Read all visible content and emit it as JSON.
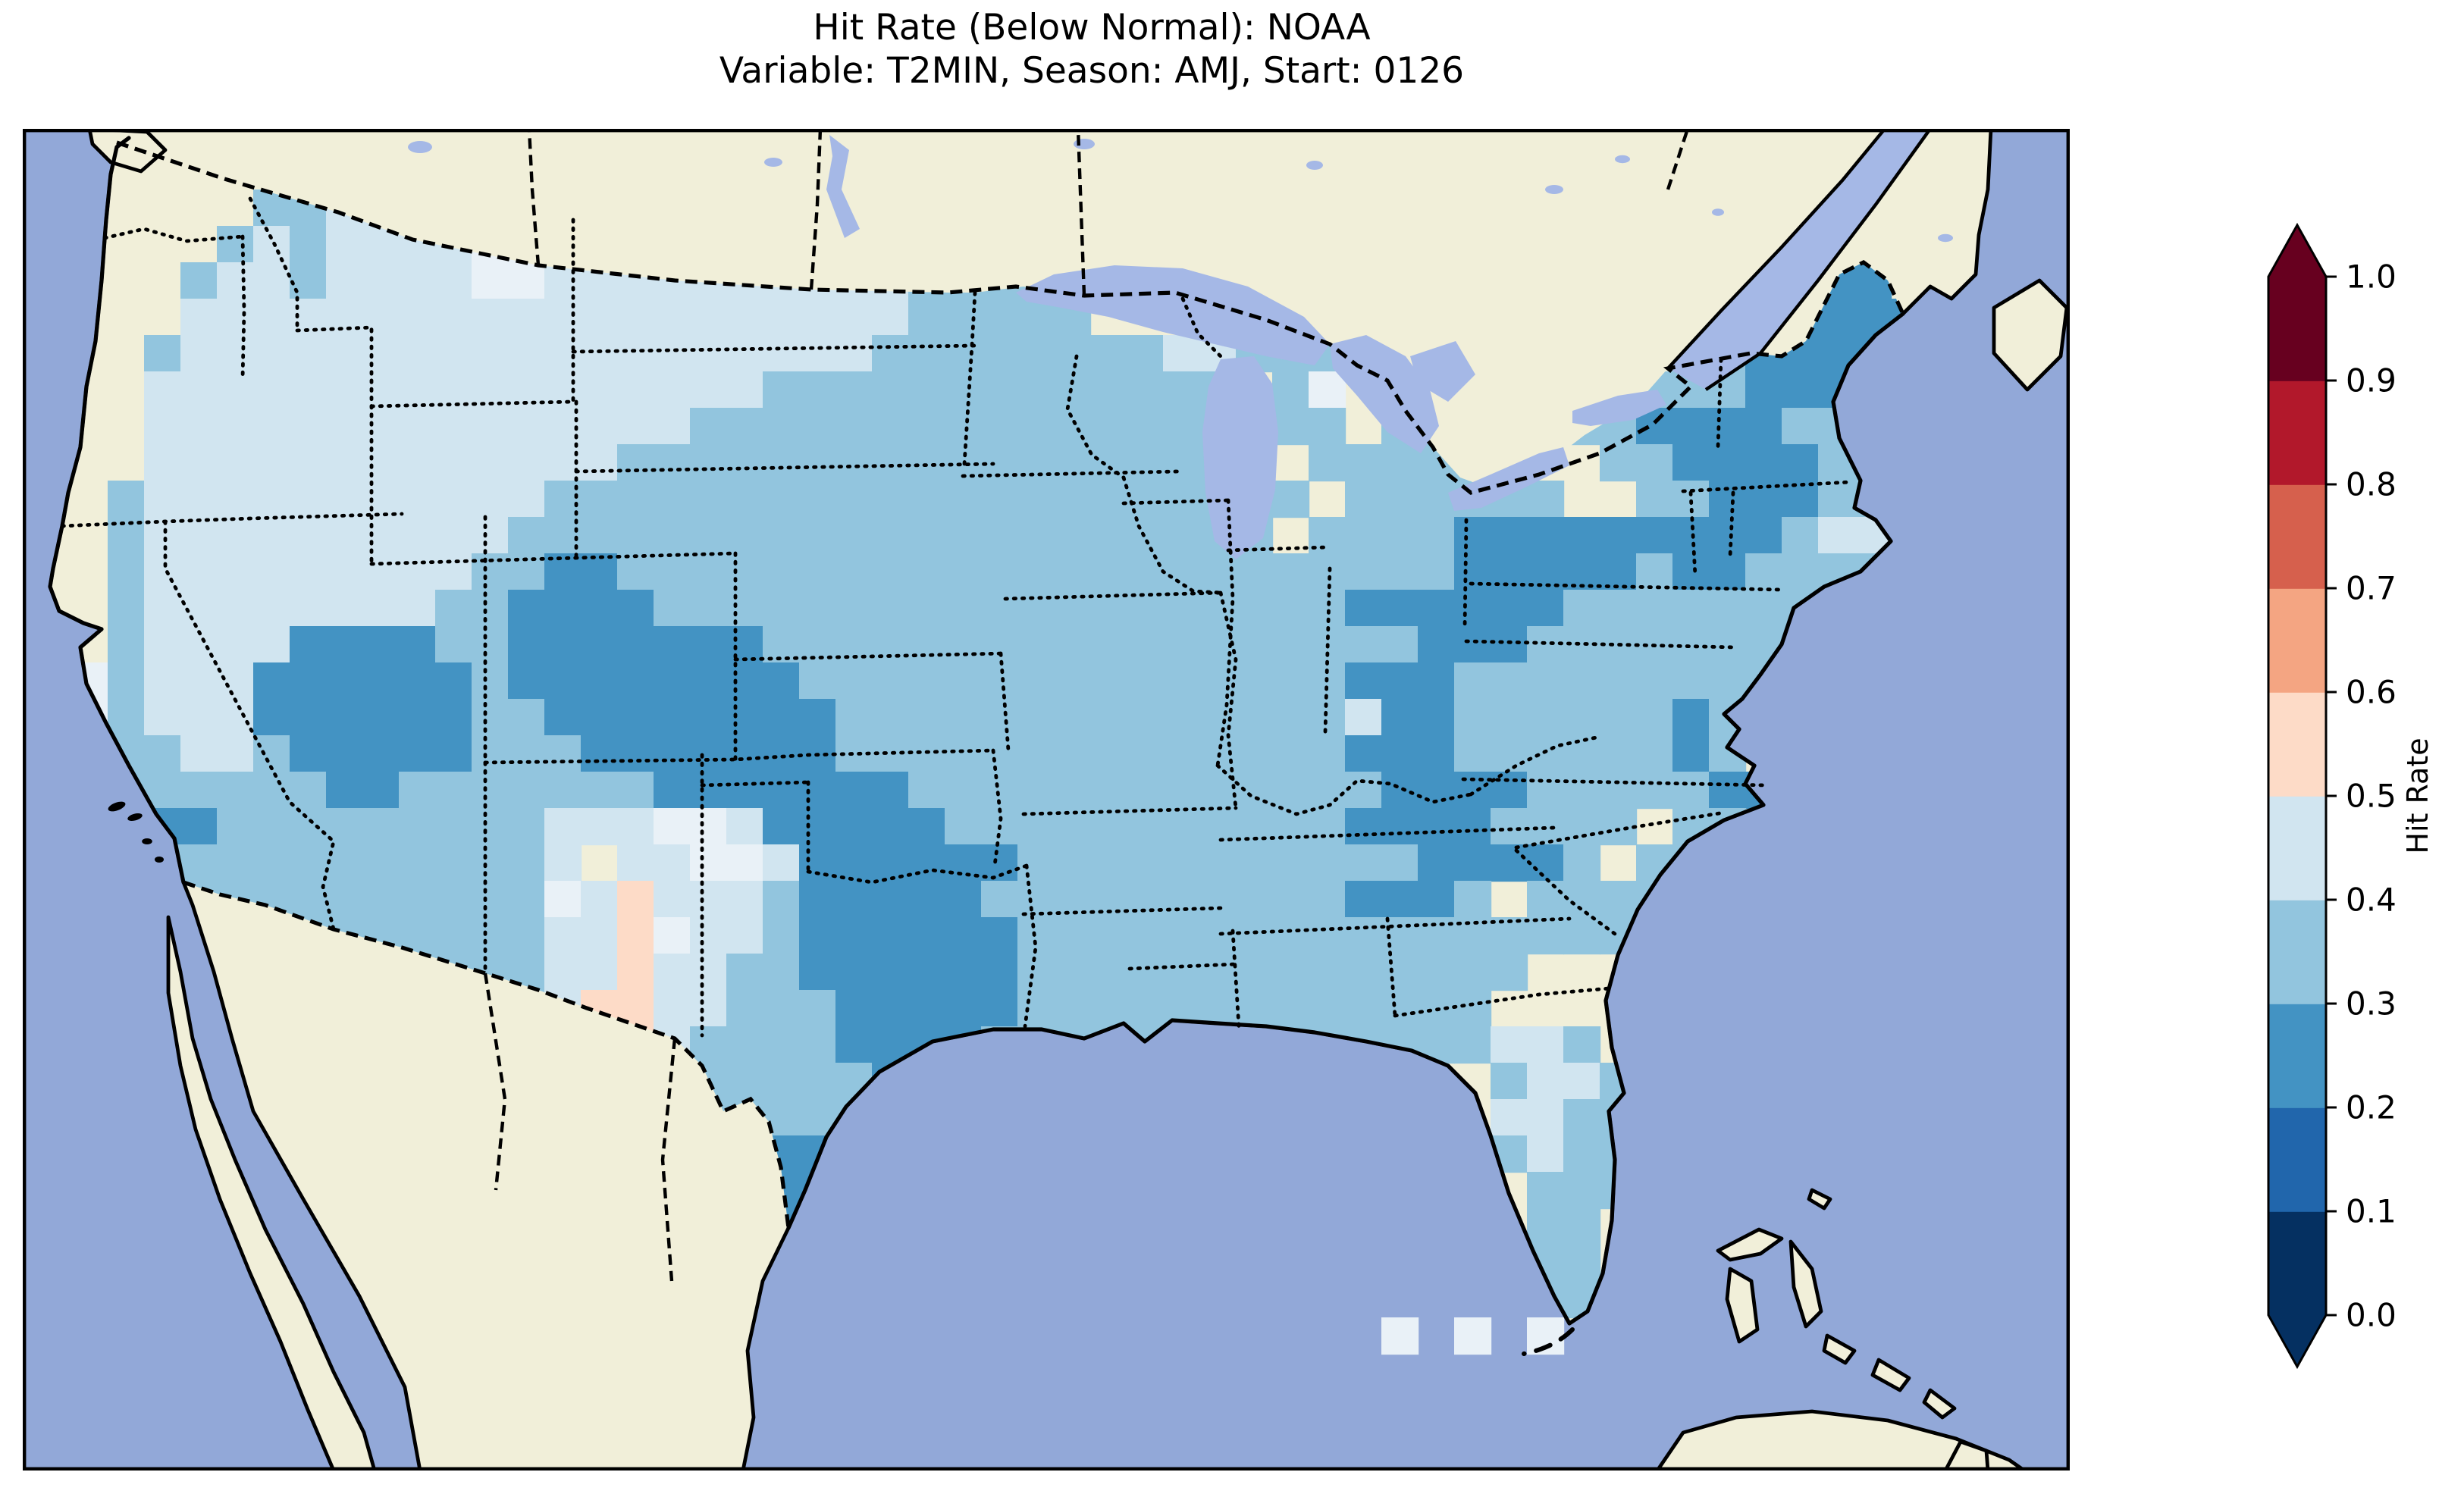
{
  "title": {
    "line1": "Hit Rate (Below Normal): NOAA",
    "line2": "Variable: T2MIN, Season: AMJ, Start: 0126"
  },
  "colorbar": {
    "label": "Hit Rate",
    "orientation": "vertical",
    "extend": "both",
    "ticks": [
      "0.0",
      "0.1",
      "0.2",
      "0.3",
      "0.4",
      "0.5",
      "0.6",
      "0.7",
      "0.8",
      "0.9",
      "1.0"
    ],
    "bin_colors_low_to_high": [
      "#053061",
      "#2166ac",
      "#4393c3",
      "#92c5de",
      "#d1e5f0",
      "#fddbc7",
      "#f4a582",
      "#d6604d",
      "#b2182b",
      "#67001f"
    ],
    "under_arrow_color": "#053061",
    "over_arrow_color": "#67001f"
  },
  "map": {
    "ocean_color": "#92a8d8",
    "lake_color": "#a5b8e6",
    "land_color": "#f1efd9",
    "coastline_color": "#000000",
    "state_border_style": "dotted black",
    "country_border_style": "dashed black"
  },
  "chart_data": {
    "type": "heatmap",
    "title": "Hit Rate (Below Normal): NOAA",
    "subtitle": "Variable: T2MIN, Season: AMJ, Start: 0126",
    "colorbar_label": "Hit Rate",
    "value_range": [
      0.0,
      1.0
    ],
    "bin_edges": [
      0.0,
      0.1,
      0.2,
      0.3,
      0.4,
      0.5,
      0.6,
      0.7,
      0.8,
      0.9,
      1.0
    ],
    "legend_position": "right",
    "region": "contiguous United States (gridded ~1-degree cells)",
    "cell": 24,
    "origin": [
      8,
      40
    ],
    "palette": {
      "2": "#4393c3",
      "3": "#92c5de",
      "4": "#d1e5f0",
      "5": "#fddbc7",
      "w": "#e9f1f7",
      "W": "#e9f1f7"
    },
    "palette_meaning": {
      "2": "hit rate 0.2-0.3",
      "3": "hit rate 0.3-0.4",
      "4": "hit rate 0.4-0.5",
      "5": "hit rate 0.5-0.6",
      "w": "hit rate ~0.5 (near-white cell)",
      "W": "hit rate ~0.5 (near-white cell over water)"
    },
    "grid": [
      "......334444wwwww4444444333.........................",
      ".....3434444wwww4444444433333.......................",
      "....34434444ww44444444443333333.................222.",
      "....4444444444444444444433333..................22222",
      "...3444444444444444444433333333443333........3322222",
      "...444444444444444443333333333333.3w.......33332222.",
      "...444444444444444333333333333333.33.33...332222333.",
      "...4444444444444333333333333333333.333333..332222333",
      "..344444444444333333333333333333333.333333..33222333",
      "..34444444444333333333333333333333.3333222222222344.",
      "..3444444444332233333333333333333333333222223223333.",
      "..344444444332222333333333333333333322222233333333..",
      "..34444222233222222233333333333333333322233333333333",
      ".w34442222223222222223333333333333332223333333333...",
      ".w344422222233222222223333333333333342233333323.....",
      ".w334432222233322222223333333333333322233333323.....",
      "..3333332233333332222222333333333333322223333322....",
      "..322333333333444ww4222223333333333322223333 33......",
      "..3333333333334 44ww42222223333333333322223 3333......",
      "..333333333333w4544432222233333333332223 3333........",
      "......33333333445w44322222233333333333333333........",
      "........333333445443322222233333333333333...........",
      "...........33345544333222223333333333333 ...........",
      ".............345543333222233333333333333443.........",
      "...............343333332233333333 3.....34433........",
      "................333333333333............4433........",
      "..................3222..................3433........",
      "...................222...................333........",
      "...................22....................33.........",
      "....................2....................33.........",
      ".........................................33.........",
      ".....................................W.W.W.........."
    ],
    "regions_summary": [
      "Most of the CONUS grid sits in the 0.3-0.4 bin (light blue).",
      "Pacific Northwest, Montana, Dakotas, Wyoming: 0.4-0.5 (very pale blue) with a few near-white ~0.5 cells.",
      "Nevada/western Utah and eastern Utah/western Colorado: 0.2-0.3 patches (medium blue).",
      "Central Texas into Oklahoma and the south Texas tip: 0.2-0.3 patch.",
      "West Texas / New Mexico border strip: pale pink 0.5-0.6 cells among 0.4-0.5 cells.",
      "Michigan-Indiana-Kentucky corridor: 0.2-0.3 patch.",
      "Upstate New York and Maine/New England: 0.2-0.3 patch.",
      "Central Florida: 0.4-0.5 cells; three near-white cells southwest of the Florida tip.",
      "No grid values exceed 0.6; red bins appear only in the colorbar."
    ]
  }
}
